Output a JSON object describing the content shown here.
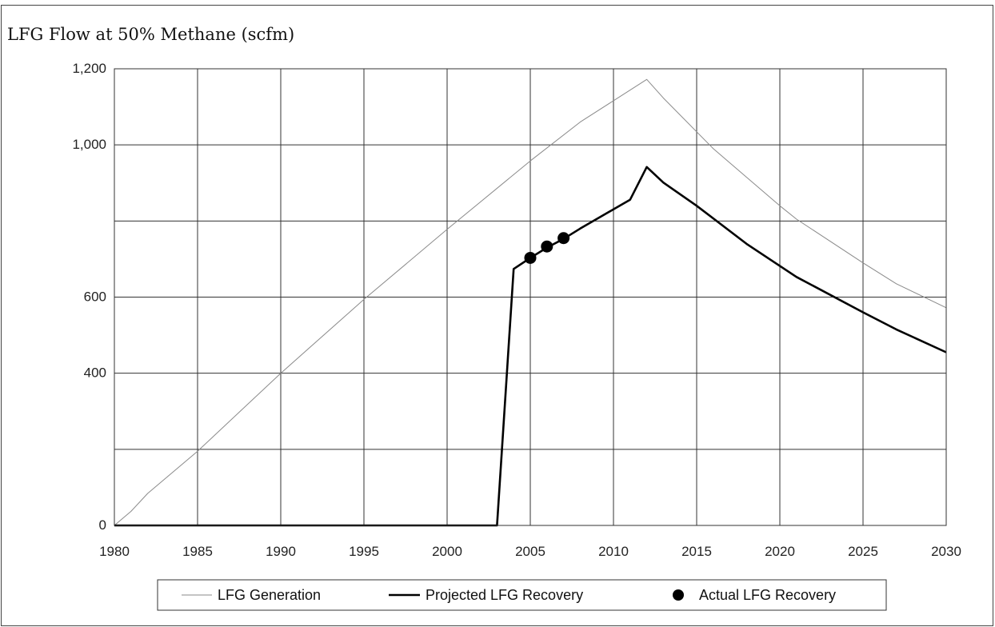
{
  "chart_data": {
    "type": "line",
    "title": "LFG Flow at 50% Methane (scfm)",
    "xlabel": "",
    "ylabel": "",
    "xlim": [
      1980,
      2030
    ],
    "ylim": [
      0,
      1200
    ],
    "x_ticks": [
      1980,
      1985,
      1990,
      1995,
      2000,
      2005,
      2010,
      2015,
      2020,
      2025,
      2030
    ],
    "x_tick_labels": [
      "1980",
      "1985",
      "1990",
      "1995",
      "2000",
      "2005",
      "2010",
      "2015",
      "2020",
      "2025",
      "2030"
    ],
    "y_gridlines": [
      0,
      200,
      400,
      600,
      800,
      1000,
      1200
    ],
    "y_ticks": [
      0,
      400,
      600,
      1000,
      1200
    ],
    "y_tick_labels": [
      "0",
      "400",
      "600",
      "1,000",
      "1,200"
    ],
    "vertical_grid": true,
    "horizontal_grid": true,
    "legend_position": "bottom",
    "series": [
      {
        "name": "LFG Generation",
        "style": "thin-line",
        "color": "#8a8a8a",
        "x": [
          1980,
          1981,
          1982,
          1985,
          1990,
          1995,
          2000,
          2005,
          2008,
          2012,
          2013,
          2016,
          2018,
          2020,
          2021,
          2025,
          2027,
          2030
        ],
        "y": [
          0,
          37,
          84,
          195,
          400,
          594,
          778,
          958,
          1060,
          1172,
          1123,
          990,
          915,
          840,
          805,
          690,
          635,
          572
        ]
      },
      {
        "name": "Projected LFG Recovery",
        "style": "thick-line",
        "color": "#000000",
        "x": [
          1980,
          2003,
          2004,
          2005,
          2006,
          2007,
          2008,
          2011,
          2012,
          2013,
          2015,
          2018,
          2021,
          2025,
          2027,
          2030
        ],
        "y": [
          0,
          0,
          674,
          703,
          730,
          753,
          780,
          856,
          942,
          901,
          840,
          740,
          653,
          560,
          515,
          455
        ]
      },
      {
        "name": "Actual LFG Recovery",
        "style": "markers",
        "color": "#000000",
        "x": [
          2005,
          2006,
          2007
        ],
        "y": [
          703,
          733,
          755
        ]
      }
    ]
  }
}
